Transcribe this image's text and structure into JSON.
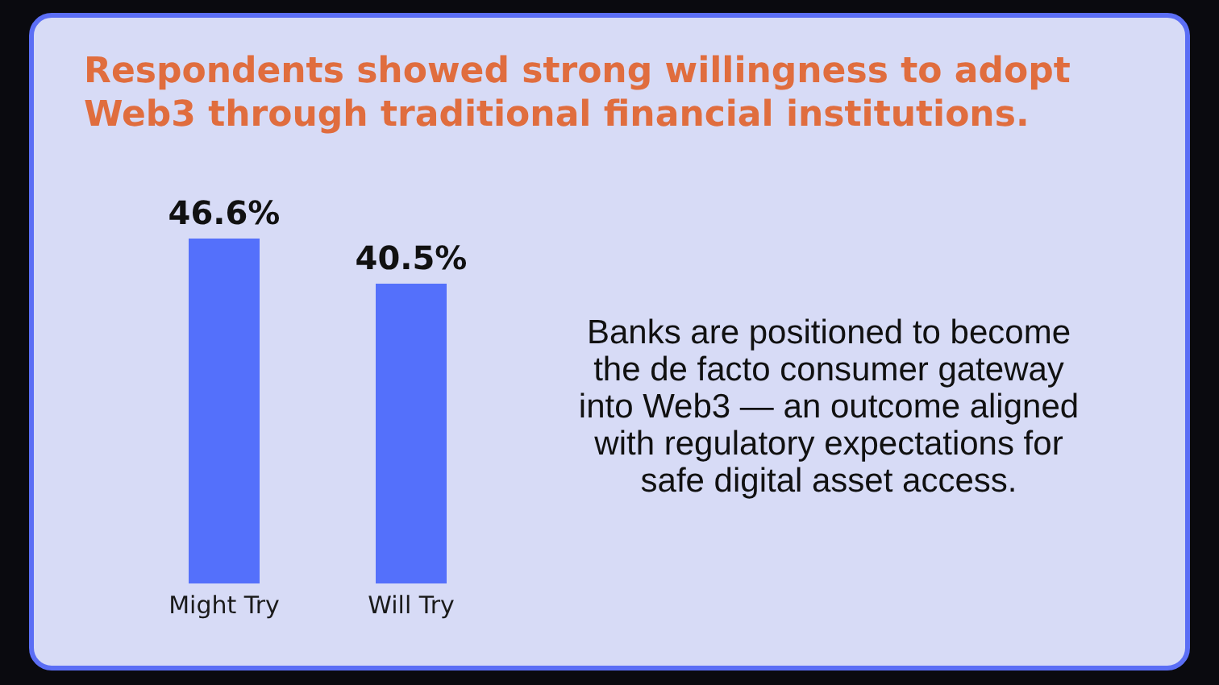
{
  "chart_data": {
    "type": "bar",
    "title": "Respondents showed strong willingness to adopt Web3 through traditional financial institutions.",
    "categories": [
      "Might Try",
      "Will Try"
    ],
    "values": [
      46.6,
      40.5
    ],
    "color": "#5470fb",
    "value_labels": [
      "46.6%",
      "40.5%"
    ],
    "annotations": [
      "Banks are positioned to become the de facto consumer gateway into Web3 — an outcome aligned with regulatory expectations for safe digital asset access."
    ]
  }
}
